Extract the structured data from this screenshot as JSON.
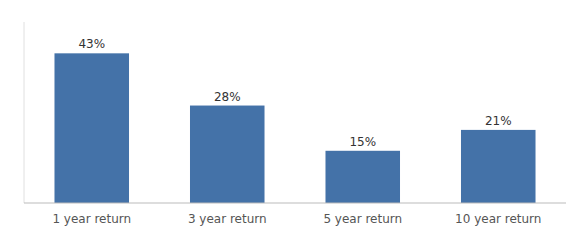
{
  "chart_data": {
    "type": "bar",
    "categories": [
      "1 year return",
      "3 year return",
      "5 year return",
      "10 year return"
    ],
    "values": [
      43,
      28,
      15,
      21
    ],
    "value_labels": [
      "43%",
      "28%",
      "15%",
      "21%"
    ],
    "color": "#4472a8",
    "ylim": [
      0,
      52
    ],
    "data_labels": true,
    "tick_labels": "x"
  }
}
